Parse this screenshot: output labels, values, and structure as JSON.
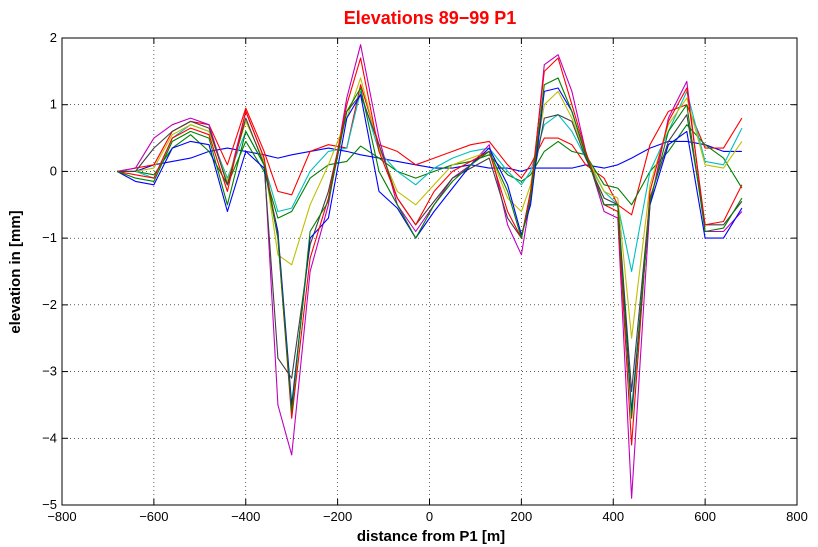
{
  "chart_data": {
    "type": "line",
    "title": "Elevations 89−99 P1",
    "title_color": "#ff0000",
    "xlabel": "distance from P1 [m]",
    "ylabel": "elevation in [mm]",
    "xlim": [
      -800,
      800
    ],
    "ylim": [
      -5,
      2
    ],
    "xticks": [
      -800,
      -600,
      -400,
      -200,
      0,
      200,
      400,
      600,
      800
    ],
    "xtick_labels": [
      "−800",
      "−600",
      "−400",
      "−200",
      "0",
      "200",
      "400",
      "600",
      "800"
    ],
    "yticks": [
      -5,
      -4,
      -3,
      -2,
      -1,
      0,
      1,
      2
    ],
    "ytick_labels": [
      "−5",
      "−4",
      "−3",
      "−2",
      "−1",
      "0",
      "1",
      "2"
    ],
    "grid": true,
    "x": [
      -680,
      -640,
      -600,
      -560,
      -520,
      -480,
      -440,
      -400,
      -360,
      -330,
      -300,
      -260,
      -220,
      -180,
      -150,
      -110,
      -70,
      -30,
      10,
      50,
      90,
      130,
      170,
      200,
      220,
      250,
      280,
      310,
      340,
      380,
      410,
      440,
      480,
      520,
      560,
      600,
      640,
      680
    ],
    "series": [
      {
        "color": "#0000ff",
        "values": [
          0,
          0,
          0.1,
          0.15,
          0.2,
          0.3,
          0.35,
          0.3,
          0.25,
          0.2,
          0.25,
          0.3,
          0.35,
          0.3,
          0.25,
          0.2,
          0.15,
          0.1,
          0.05,
          0.05,
          0.1,
          0.05,
          0.05,
          0,
          0.05,
          0.05,
          0.05,
          0.05,
          0.1,
          0.05,
          0.1,
          0.2,
          0.35,
          0.45,
          0.45,
          0.4,
          0.3,
          0.3
        ]
      },
      {
        "color": "#ff0000",
        "values": [
          0,
          0.05,
          0.1,
          0.6,
          0.75,
          0.7,
          0.1,
          0.95,
          0.3,
          -0.3,
          -0.35,
          0.3,
          0.4,
          0.35,
          1.3,
          0.4,
          0.3,
          0.1,
          0.2,
          0.3,
          0.4,
          0.45,
          0.1,
          -0.1,
          0.1,
          0.5,
          0.5,
          0.4,
          0.1,
          -0.1,
          -0.5,
          -0.65,
          0.4,
          0.9,
          1.0,
          0.35,
          0.35,
          0.8
        ]
      },
      {
        "color": "#008000",
        "values": [
          0,
          0,
          -0.05,
          0.35,
          0.55,
          0.3,
          -0.2,
          0.45,
          0,
          -0.7,
          -0.6,
          -0.1,
          0.1,
          0.15,
          0.38,
          0.2,
          0,
          -0.1,
          0,
          0.1,
          0.15,
          0.25,
          -0.05,
          -0.15,
          -0.05,
          0.3,
          0.45,
          0.3,
          0.25,
          -0.2,
          -0.25,
          -0.5,
          0,
          0.3,
          0.7,
          0.4,
          0.2,
          -0.25
        ]
      },
      {
        "color": "#00bfbf",
        "values": [
          0,
          0,
          -0.1,
          0.5,
          0.7,
          0.6,
          -0.1,
          0.6,
          0.1,
          -0.6,
          -0.55,
          0,
          0.3,
          0.35,
          1.2,
          0.3,
          0,
          -0.2,
          0.05,
          0.2,
          0.3,
          0.35,
          0,
          -0.2,
          0,
          0.7,
          0.85,
          0.6,
          0.2,
          -0.3,
          -0.5,
          -1.5,
          0,
          0.6,
          1.2,
          0.15,
          0.1,
          0.65
        ]
      },
      {
        "color": "#bf00bf",
        "values": [
          0,
          0.05,
          0.5,
          0.7,
          0.8,
          0.7,
          -0.2,
          0.9,
          0.2,
          -3.5,
          -4.25,
          -1.5,
          -0.5,
          1.1,
          1.9,
          0.5,
          -0.5,
          -0.9,
          -0.5,
          -0.1,
          0.1,
          0.4,
          -0.8,
          -1.25,
          -0.4,
          1.6,
          1.75,
          1.2,
          0.3,
          -0.6,
          -0.7,
          -4.9,
          -0.5,
          0.8,
          1.35,
          -0.9,
          -0.9,
          -0.6
        ]
      },
      {
        "color": "#bfbf00",
        "values": [
          0,
          0,
          0.05,
          0.55,
          0.7,
          0.6,
          -0.15,
          0.75,
          0.15,
          -1.25,
          -1.4,
          -0.5,
          0.1,
          0.8,
          1.4,
          0.35,
          -0.3,
          -0.5,
          -0.2,
          0.1,
          0.2,
          0.3,
          -0.4,
          -0.6,
          -0.2,
          1.0,
          1.2,
          0.8,
          0.25,
          -0.3,
          -0.4,
          -2.5,
          -0.2,
          0.7,
          1.1,
          0.1,
          0.05,
          0.45
        ]
      },
      {
        "color": "#404040",
        "values": [
          0,
          0,
          0.35,
          0.6,
          0.75,
          0.65,
          -0.2,
          0.8,
          0.1,
          -2.8,
          -3.1,
          -1.1,
          -0.3,
          0.9,
          1.15,
          0.4,
          -0.4,
          -0.8,
          -0.45,
          -0.1,
          0.05,
          0.2,
          -0.7,
          -1.0,
          -0.3,
          0.8,
          0.85,
          0.75,
          0.2,
          -0.4,
          -0.5,
          -3.3,
          -0.4,
          0.45,
          0.85,
          -0.8,
          -0.8,
          -0.45
        ]
      },
      {
        "color": "#0000ff",
        "values": [
          0,
          -0.15,
          -0.2,
          0.35,
          0.45,
          0.4,
          -0.6,
          0.3,
          0.05,
          -0.9,
          -3.5,
          -1.0,
          -0.7,
          0.8,
          1.15,
          -0.3,
          -0.55,
          -1.0,
          -0.6,
          -0.25,
          0.1,
          0.35,
          -0.2,
          -0.95,
          -0.5,
          1.2,
          1.25,
          0.9,
          0.25,
          -0.5,
          -0.5,
          -3.6,
          -0.5,
          0.4,
          0.6,
          -1.0,
          -1.0,
          -0.55
        ]
      },
      {
        "color": "#ff0000",
        "values": [
          0,
          -0.05,
          -0.1,
          0.5,
          0.65,
          0.55,
          -0.3,
          0.9,
          0.2,
          -1.0,
          -3.7,
          -1.3,
          -0.4,
          1.0,
          1.7,
          0.3,
          -0.4,
          -0.8,
          -0.3,
          0,
          0.15,
          0.3,
          -0.6,
          -1.0,
          -0.3,
          1.5,
          1.7,
          1.0,
          0.3,
          -0.5,
          -0.6,
          -4.1,
          -0.3,
          0.75,
          1.25,
          -0.8,
          -0.75,
          -0.2
        ]
      },
      {
        "color": "#008000",
        "values": [
          0,
          -0.1,
          -0.15,
          0.45,
          0.6,
          0.5,
          -0.5,
          0.6,
          0.1,
          -1.0,
          -3.6,
          -0.9,
          -0.45,
          0.9,
          1.25,
          0,
          -0.5,
          -1.0,
          -0.5,
          -0.15,
          0.1,
          0.3,
          -0.3,
          -1.0,
          -0.4,
          1.3,
          1.4,
          0.9,
          0.25,
          -0.5,
          -0.5,
          -3.7,
          -0.45,
          0.6,
          1.0,
          -0.9,
          -0.85,
          -0.4
        ]
      }
    ]
  }
}
